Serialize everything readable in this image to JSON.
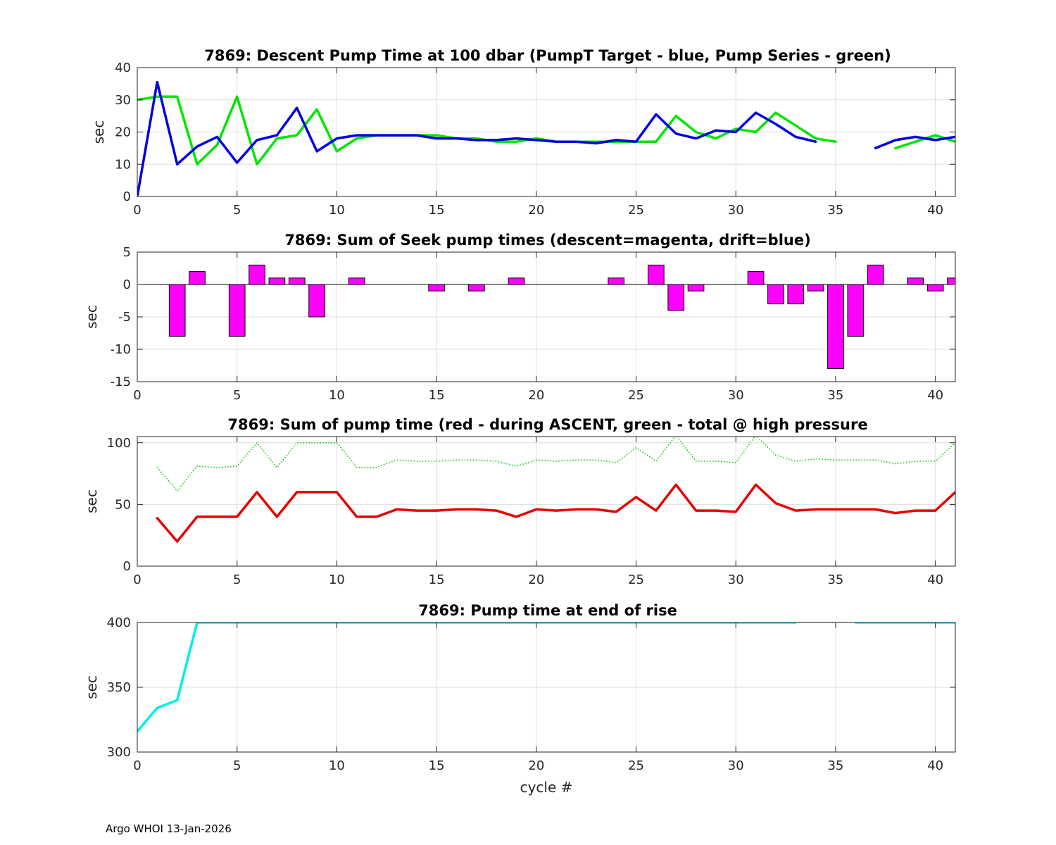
{
  "footer": "Argo WHOI 13-Jan-2026",
  "colors": {
    "green": "#00e600",
    "blue": "#0000e0",
    "magenta": "#ff00ff",
    "red": "#e60000",
    "dotted_green": "#00d000",
    "cyan": "#00eeee",
    "dark_blue": "#0000a0"
  },
  "chart_data": [
    {
      "type": "line",
      "title": "7869: Descent Pump Time at 100 dbar (PumpT Target - blue, Pump Series - green)",
      "xlabel": "",
      "ylabel": "sec",
      "xlim": [
        0,
        41
      ],
      "ylim": [
        0,
        40
      ],
      "xticks": [
        0,
        5,
        10,
        15,
        20,
        25,
        30,
        35,
        40
      ],
      "yticks": [
        0,
        10,
        20,
        30,
        40
      ],
      "grid": true,
      "series": [
        {
          "color": "#00e600",
          "x": [
            0,
            1,
            2,
            3,
            4,
            5,
            6,
            7,
            8,
            9,
            10,
            11,
            12,
            13,
            14,
            15,
            16,
            17,
            18,
            19,
            20,
            21,
            22,
            23,
            24,
            25,
            26,
            27,
            28,
            29,
            30,
            31,
            32,
            33,
            34,
            35,
            36,
            37,
            38,
            39,
            40,
            41
          ],
          "y": [
            30,
            31,
            31,
            10,
            16,
            31,
            10,
            18,
            19,
            27,
            14,
            18,
            19,
            19,
            19,
            19,
            18,
            18,
            17,
            17,
            18,
            17,
            17,
            17,
            17,
            17,
            17,
            25,
            20,
            18,
            21,
            20,
            26,
            22,
            18,
            17,
            null,
            null,
            15,
            17,
            19,
            17
          ]
        },
        {
          "color": "#0000e0",
          "x": [
            0,
            1,
            2,
            3,
            4,
            5,
            6,
            7,
            8,
            9,
            10,
            11,
            12,
            13,
            14,
            15,
            16,
            17,
            18,
            19,
            20,
            21,
            22,
            23,
            24,
            25,
            26,
            27,
            28,
            29,
            30,
            31,
            32,
            33,
            34,
            35,
            36,
            37,
            38,
            39,
            40,
            41
          ],
          "y": [
            0,
            35.5,
            10,
            15.5,
            18.5,
            10.5,
            17.5,
            19,
            27.5,
            14,
            18,
            19,
            19,
            19,
            19,
            18,
            18,
            17.5,
            17.5,
            18,
            17.5,
            17,
            17,
            16.5,
            17.5,
            17,
            25.5,
            19.5,
            18,
            20.5,
            20,
            26,
            22.5,
            18.5,
            17,
            null,
            null,
            15,
            17.5,
            18.5,
            17.5,
            18.5
          ]
        }
      ]
    },
    {
      "type": "bar",
      "title": "7869: Sum of Seek pump times (descent=magenta, drift=blue)",
      "xlabel": "",
      "ylabel": "sec",
      "xlim": [
        0,
        41
      ],
      "ylim": [
        -15,
        5
      ],
      "xticks": [
        0,
        5,
        10,
        15,
        20,
        25,
        30,
        35,
        40
      ],
      "yticks": [
        -15,
        -10,
        -5,
        0,
        5
      ],
      "grid": true,
      "color": "#ff00ff",
      "x": [
        2,
        3,
        5,
        6,
        7,
        8,
        9,
        11,
        15,
        17,
        19,
        24,
        26,
        27,
        28,
        31,
        32,
        33,
        34,
        35,
        36,
        37,
        39,
        40,
        41
      ],
      "values": [
        -8,
        2,
        -8,
        3,
        1,
        1,
        -5,
        1,
        -1,
        -1,
        1,
        1,
        3,
        -4,
        -1,
        2,
        -3,
        -3,
        -1,
        -13,
        -8,
        3,
        1,
        -1,
        1
      ]
    },
    {
      "type": "line",
      "title": "7869: Sum of pump time (red - during ASCENT, green - total @ high pressure",
      "xlabel": "",
      "ylabel": "sec",
      "xlim": [
        0,
        41
      ],
      "ylim": [
        0,
        105
      ],
      "xticks": [
        0,
        5,
        10,
        15,
        20,
        25,
        30,
        35,
        40
      ],
      "yticks": [
        0,
        50,
        100
      ],
      "grid": true,
      "series": [
        {
          "color": "#00d000",
          "style": "dotted",
          "x": [
            1,
            2,
            3,
            4,
            5,
            6,
            7,
            8,
            9,
            10,
            11,
            12,
            13,
            14,
            15,
            16,
            17,
            18,
            19,
            20,
            21,
            22,
            23,
            24,
            25,
            26,
            27,
            28,
            29,
            30,
            31,
            32,
            33,
            34,
            35,
            36,
            37,
            38,
            39,
            40,
            41
          ],
          "y": [
            80,
            61,
            81,
            80,
            81,
            100,
            80,
            100,
            100,
            100,
            80,
            80,
            86,
            85,
            85,
            86,
            86,
            85,
            81,
            86,
            85,
            86,
            86,
            84,
            96,
            85,
            106,
            85,
            85,
            84,
            106,
            90,
            85,
            87,
            86,
            86,
            86,
            83,
            85,
            85,
            100
          ]
        },
        {
          "color": "#e60000",
          "x": [
            1,
            2,
            3,
            4,
            5,
            6,
            7,
            8,
            9,
            10,
            11,
            12,
            13,
            14,
            15,
            16,
            17,
            18,
            19,
            20,
            21,
            22,
            23,
            24,
            25,
            26,
            27,
            28,
            29,
            30,
            31,
            32,
            33,
            34,
            35,
            36,
            37,
            38,
            39,
            40,
            41
          ],
          "y": [
            39,
            20,
            40,
            40,
            40,
            60,
            40,
            60,
            60,
            60,
            40,
            40,
            46,
            45,
            45,
            46,
            46,
            45,
            40,
            46,
            45,
            46,
            46,
            44,
            56,
            45,
            66,
            45,
            45,
            44,
            66,
            51,
            45,
            46,
            46,
            46,
            46,
            43,
            45,
            45,
            60
          ]
        }
      ]
    },
    {
      "type": "line",
      "title": "7869: Pump time at end of rise",
      "xlabel": "cycle #",
      "ylabel": "sec",
      "xlim": [
        0,
        41
      ],
      "ylim": [
        300,
        400
      ],
      "xticks": [
        0,
        5,
        10,
        15,
        20,
        25,
        30,
        35,
        40
      ],
      "yticks": [
        300,
        350,
        400
      ],
      "grid": true,
      "series": [
        {
          "color": "#0000a0",
          "style": "dotted",
          "x": [
            33,
            36
          ],
          "y": [
            400,
            400
          ]
        },
        {
          "color": "#00eeee",
          "x": [
            0,
            1,
            2,
            3,
            4,
            5,
            6,
            7,
            8,
            9,
            10,
            11,
            12,
            13,
            14,
            15,
            16,
            17,
            18,
            19,
            20,
            21,
            22,
            23,
            24,
            25,
            26,
            27,
            28,
            29,
            30,
            31,
            32,
            33,
            34,
            35,
            36,
            37,
            38,
            39,
            40,
            41
          ],
          "y": [
            316,
            334,
            340,
            400,
            400,
            400,
            400,
            400,
            400,
            400,
            400,
            400,
            400,
            400,
            400,
            400,
            400,
            400,
            400,
            400,
            400,
            400,
            400,
            400,
            400,
            400,
            400,
            400,
            400,
            400,
            400,
            400,
            400,
            400,
            null,
            null,
            400,
            400,
            400,
            400,
            400,
            400
          ]
        }
      ]
    }
  ]
}
